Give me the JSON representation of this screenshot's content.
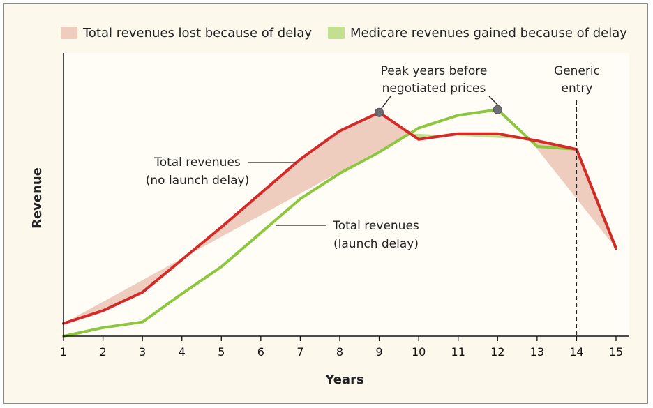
{
  "chart_data": {
    "type": "area",
    "xlabel": "Years",
    "ylabel": "Revenue",
    "x": [
      1,
      2,
      3,
      4,
      5,
      6,
      7,
      8,
      9,
      10,
      11,
      12,
      13,
      14,
      15
    ],
    "xlim": [
      1,
      15
    ],
    "ylim": [
      0,
      100
    ],
    "series": [
      {
        "name": "Total revenues (no launch delay)",
        "color": "#d42a2a",
        "x": [
          1,
          2,
          3,
          4,
          5,
          6,
          7,
          8,
          9,
          10,
          11,
          12,
          13,
          14,
          15
        ],
        "values": [
          4.5,
          9,
          15.5,
          27,
          38.5,
          50.5,
          62.5,
          72.5,
          79,
          69.5,
          71.5,
          71.5,
          69,
          66,
          31
        ]
      },
      {
        "name": "Total revenues (launch delay)",
        "color": "#8dc63f",
        "x": [
          1,
          2,
          3,
          4,
          5,
          6,
          7,
          8,
          9,
          10,
          11,
          12,
          13,
          14,
          15
        ],
        "values": [
          0,
          3,
          5,
          15,
          24.5,
          36.5,
          48.5,
          57.5,
          65,
          73.5,
          78,
          80,
          67,
          66,
          31
        ]
      }
    ],
    "fills": [
      {
        "name": "Total revenues lost because of delay",
        "color": "#eecdbf"
      },
      {
        "name": "Medicare revenues gained because of delay",
        "color": "#c2e08f"
      }
    ],
    "legend": {
      "placement": "top",
      "items": [
        {
          "label": "Total revenues lost because of delay",
          "color": "#eecdbf"
        },
        {
          "label": "Medicare revenues gained because of delay",
          "color": "#c2e08f"
        }
      ]
    },
    "vline": {
      "x": 14,
      "style": "dashed",
      "label": [
        "Generic",
        "entry"
      ]
    },
    "markers": [
      {
        "x": 9,
        "y": 79,
        "series": "Total revenues (no launch delay)"
      },
      {
        "x": 12,
        "y": 80,
        "series": "Total revenues (launch delay)"
      }
    ],
    "annotations": {
      "peak": [
        "Peak years before",
        "negotiated prices"
      ],
      "no_delay": [
        "Total revenues",
        "(no launch delay)"
      ],
      "delay": [
        "Total revenues",
        "(launch delay)"
      ]
    },
    "grid": false
  }
}
